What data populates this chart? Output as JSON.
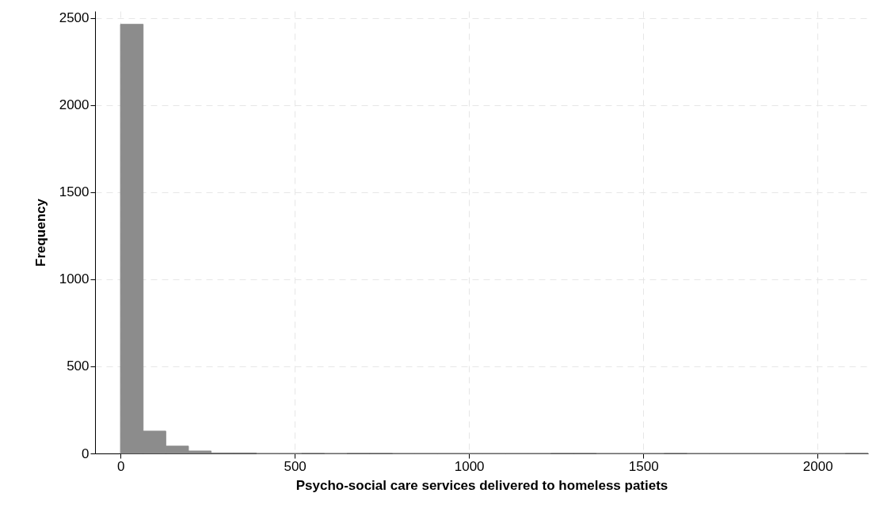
{
  "chart_data": {
    "type": "histogram",
    "xlabel": "Psycho-social care services delivered to homeless patiets",
    "ylabel": "Frequency",
    "bins": [
      0,
      65,
      130,
      195,
      260,
      325,
      390,
      455,
      520,
      585,
      650,
      715,
      780,
      845,
      910,
      975,
      1040,
      1105,
      1170,
      1235,
      1300,
      1365,
      1430,
      1495,
      1560,
      1625,
      1690,
      1755,
      1820,
      1885,
      1950,
      2015,
      2080,
      2145
    ],
    "values": [
      2464,
      128,
      42,
      14,
      3,
      3,
      0,
      0,
      1,
      0,
      1,
      1,
      0,
      0,
      0,
      0,
      0,
      0,
      0,
      1,
      1,
      0,
      0,
      0,
      1,
      0,
      0,
      0,
      0,
      0,
      0,
      0,
      1
    ],
    "color": "#8c8c8c",
    "xlim": [
      -73,
      2145
    ],
    "xticks": [
      0,
      500,
      1000,
      1500,
      2000
    ],
    "ylim": [
      0,
      2540
    ],
    "yticks": [
      0,
      500,
      1000,
      1500,
      2000,
      2500
    ],
    "grid": true
  }
}
